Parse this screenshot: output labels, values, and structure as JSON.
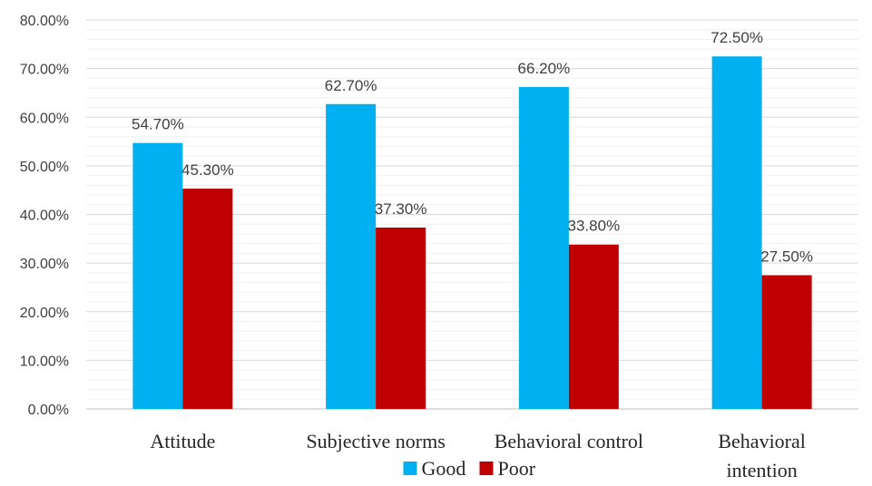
{
  "chart_data": {
    "type": "bar",
    "categories": [
      [
        "Attitude"
      ],
      [
        "Subjective norms"
      ],
      [
        "Behavioral control"
      ],
      [
        "Behavioral",
        "intention"
      ]
    ],
    "series": [
      {
        "name": "Good",
        "color": "#00B0F0",
        "values": [
          54.7,
          62.7,
          66.2,
          72.5
        ],
        "labels": [
          "54.70%",
          "62.70%",
          "66.20%",
          "72.50%"
        ]
      },
      {
        "name": "Poor",
        "color": "#C00000",
        "values": [
          45.3,
          37.3,
          33.8,
          27.5
        ],
        "labels": [
          "45.30%",
          "37.30%",
          "33.80%",
          "27.50%"
        ]
      }
    ],
    "ylim": [
      0,
      80
    ],
    "yticks": [
      0,
      10,
      20,
      30,
      40,
      50,
      60,
      70,
      80
    ],
    "ytick_labels": [
      "0.00%",
      "10.00%",
      "20.00%",
      "30.00%",
      "40.00%",
      "50.00%",
      "60.00%",
      "70.00%",
      "80.00%"
    ],
    "minor_gridlines": true,
    "legend_position": "bottom"
  }
}
